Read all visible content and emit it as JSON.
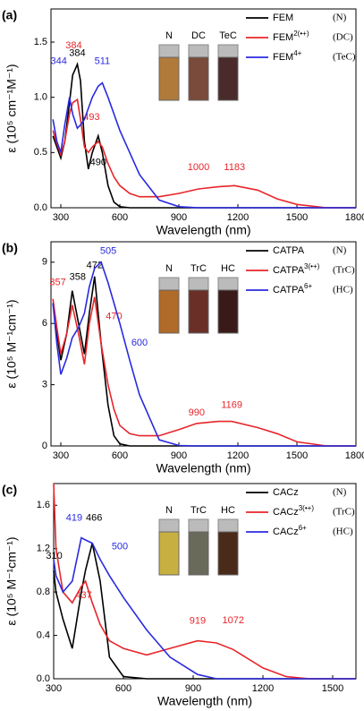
{
  "chart_data": [
    {
      "type": "line",
      "panel_label": "(a)",
      "x_label": "Wavelength (nm)",
      "y_label": "ε (10⁵ cm⁻¹M⁻¹)",
      "xlim": [
        250,
        1800
      ],
      "ylim": [
        0,
        1.8
      ],
      "xticks": [
        300,
        600,
        900,
        1200,
        1500,
        1800
      ],
      "yticks": [
        {
          "value": 0,
          "label": "0.0"
        },
        0.5,
        {
          "value": 1,
          "label": "1.0"
        },
        1.5
      ],
      "inset_labels": [
        "N",
        "DC",
        "TeC"
      ],
      "inset_colors": [
        "#b07a3a",
        "#7a4a3a",
        "#4a2a2a"
      ],
      "x": [
        260,
        280,
        300,
        320,
        344,
        360,
        384,
        400,
        420,
        440,
        460,
        490,
        511,
        540,
        570,
        600,
        650,
        700,
        800,
        900,
        1000,
        1100,
        1183,
        1300,
        1400,
        1500,
        1650,
        1800
      ],
      "series": [
        {
          "name": "FEM",
          "state": "(N)",
          "color": "#000000",
          "peak_labels": [
            384,
            490
          ],
          "values": [
            0.65,
            0.55,
            0.45,
            0.6,
            0.95,
            1.2,
            1.3,
            1.15,
            0.6,
            0.35,
            0.5,
            0.65,
            0.5,
            0.2,
            0.05,
            0.01,
            0,
            0,
            0,
            0,
            0,
            0,
            0,
            0,
            0,
            0,
            0,
            0
          ]
        },
        {
          "name": "FEM",
          "superscript": "2(•+)",
          "state": "(DC)",
          "color": "#e8252a",
          "peak_labels": [
            384,
            493,
            1000,
            1183
          ],
          "values": [
            0.7,
            0.58,
            0.48,
            0.6,
            0.85,
            0.95,
            0.98,
            0.8,
            0.55,
            0.5,
            0.55,
            0.6,
            0.55,
            0.4,
            0.28,
            0.2,
            0.13,
            0.1,
            0.1,
            0.13,
            0.17,
            0.19,
            0.2,
            0.16,
            0.08,
            0.03,
            0,
            0
          ]
        },
        {
          "name": "FEM",
          "superscript": "4+",
          "state": "(TeC)",
          "color": "#2a2ae0",
          "peak_labels": [
            344,
            511
          ],
          "values": [
            0.8,
            0.6,
            0.5,
            0.75,
            1.0,
            0.85,
            0.72,
            0.75,
            0.8,
            0.9,
            1.0,
            1.1,
            1.13,
            1.0,
            0.85,
            0.7,
            0.5,
            0.3,
            0.07,
            0.01,
            0,
            0,
            0,
            0,
            0,
            0,
            0,
            0
          ]
        }
      ]
    },
    {
      "type": "line",
      "panel_label": "(b)",
      "x_label": "Wavelength (nm)",
      "y_label": "ε (10⁵ M⁻¹cm⁻¹)",
      "xlim": [
        250,
        1800
      ],
      "ylim": [
        0,
        10
      ],
      "xticks": [
        300,
        600,
        900,
        1200,
        1500,
        1800
      ],
      "yticks": [
        0,
        3,
        6,
        9
      ],
      "inset_labels": [
        "N",
        "TrC",
        "HC"
      ],
      "inset_colors": [
        "#b06a2a",
        "#6a3028",
        "#3a1a18"
      ],
      "x": [
        260,
        280,
        300,
        330,
        358,
        390,
        420,
        445,
        472,
        505,
        540,
        570,
        600,
        650,
        700,
        800,
        900,
        990,
        1100,
        1169,
        1300,
        1400,
        1500,
        1650,
        1800
      ],
      "series": [
        {
          "name": "CATPA",
          "state": "(N)",
          "color": "#000000",
          "peak_labels": [
            358,
            472
          ],
          "values": [
            7.0,
            5.5,
            4.2,
            5.5,
            7.6,
            6.0,
            4.5,
            6.5,
            8.3,
            5.0,
            2.0,
            0.5,
            0.1,
            0,
            0,
            0,
            0,
            0,
            0,
            0,
            0,
            0,
            0,
            0,
            0
          ]
        },
        {
          "name": "CATPA",
          "superscript": "3(•+)",
          "state": "(TrC)",
          "color": "#e8252a",
          "peak_labels": [
            357,
            470,
            990,
            1169
          ],
          "values": [
            7.2,
            5.8,
            4.5,
            5.5,
            6.9,
            5.5,
            4.0,
            6.0,
            7.3,
            5.0,
            3.0,
            1.8,
            1.0,
            0.6,
            0.5,
            0.5,
            0.8,
            1.1,
            1.2,
            1.2,
            0.9,
            0.6,
            0.2,
            0,
            0
          ]
        },
        {
          "name": "CATPA",
          "superscript": "6+",
          "state": "(HC)",
          "color": "#2a2ae0",
          "peak_labels": [
            505,
            600
          ],
          "values": [
            7.0,
            5.0,
            3.5,
            4.3,
            5.3,
            5.8,
            6.5,
            7.8,
            8.7,
            9.0,
            8.0,
            7.0,
            6.0,
            4.2,
            2.5,
            0.3,
            0.02,
            0,
            0,
            0,
            0,
            0,
            0,
            0,
            0
          ]
        }
      ]
    },
    {
      "type": "line",
      "panel_label": "(c)",
      "x_label": "Wavelength (nm)",
      "y_label": "ε (10⁵ M⁻¹cm⁻¹)",
      "xlim": [
        300,
        1600
      ],
      "ylim": [
        0,
        1.8
      ],
      "xticks": [
        300,
        600,
        900,
        1200,
        1500
      ],
      "yticks": [
        {
          "value": 0,
          "label": "0.0"
        },
        0.4,
        0.8,
        1.2,
        1.6
      ],
      "inset_labels": [
        "N",
        "TrC",
        "HC"
      ],
      "inset_colors": [
        "#c8b040",
        "#6a6a5a",
        "#4a2a18"
      ],
      "x": [
        300,
        310,
        340,
        380,
        419,
        437,
        466,
        500,
        540,
        600,
        700,
        800,
        919,
        1000,
        1072,
        1200,
        1300,
        1400,
        1500,
        1600
      ],
      "series": [
        {
          "name": "CACz",
          "state": "(N)",
          "color": "#000000",
          "peak_labels": [
            310,
            466
          ],
          "values": [
            1.0,
            0.8,
            0.55,
            0.28,
            0.8,
            1.0,
            1.25,
            0.9,
            0.2,
            0.02,
            0,
            0,
            0,
            0,
            0,
            0,
            0,
            0,
            0,
            0
          ]
        },
        {
          "name": "CACz",
          "superscript": "3(•+)",
          "state": "(TrC)",
          "color": "#e8252a",
          "peak_labels": [
            437,
            919,
            1072
          ],
          "values": [
            1.8,
            1.2,
            0.8,
            0.7,
            0.85,
            0.9,
            0.7,
            0.5,
            0.35,
            0.28,
            0.22,
            0.28,
            0.35,
            0.33,
            0.27,
            0.1,
            0.02,
            0,
            0,
            0
          ]
        },
        {
          "name": "CACz",
          "superscript": "6+",
          "state": "(HC)",
          "color": "#2a2ae0",
          "peak_labels": [
            419,
            500
          ],
          "values": [
            1.1,
            0.95,
            0.8,
            0.9,
            1.3,
            1.28,
            1.25,
            1.1,
            0.95,
            0.75,
            0.45,
            0.2,
            0.04,
            0,
            0,
            0,
            0,
            0,
            0,
            0
          ]
        }
      ]
    }
  ]
}
